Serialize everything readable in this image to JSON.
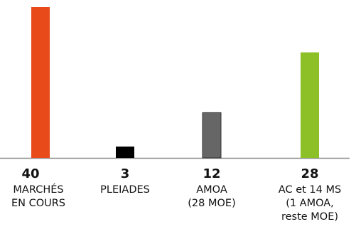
{
  "chart_data": {
    "type": "bar",
    "title": "",
    "xlabel": "",
    "ylabel": "",
    "ylim": [
      0,
      40
    ],
    "grid": false,
    "legend": "none",
    "values": [
      40,
      3,
      12,
      28
    ],
    "value_labels": [
      "40",
      "3",
      "12",
      "28"
    ],
    "categories": [
      [
        "MARCHÉS",
        "EN COURS"
      ],
      [
        "PLEIADES"
      ],
      [
        "AMOA",
        "(28 MOE)"
      ],
      [
        "AC et 14 MS",
        "(1 AMOA,",
        "reste MOE)"
      ]
    ],
    "colors": [
      "#E84A1A",
      "#000000",
      "#666666",
      "#8DC026"
    ],
    "bar_outline": "#333333",
    "baseline_color": "#8A8A8A"
  }
}
